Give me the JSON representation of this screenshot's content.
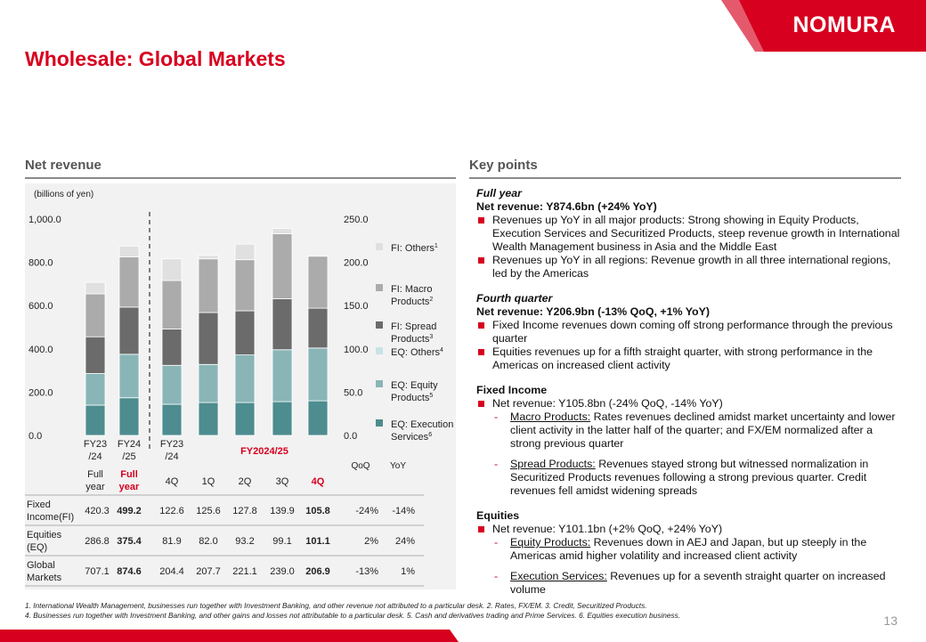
{
  "brand": {
    "name": "NOMURA",
    "color": "#d7001f"
  },
  "page": {
    "title": "Wholesale: Global Markets",
    "number": "13"
  },
  "sections": {
    "left_title": "Net revenue",
    "right_title": "Key points"
  },
  "chart_data": {
    "type": "bar",
    "subtype": "stacked",
    "unit_label": "(billions of yen)",
    "left_axis": {
      "ticks": [
        "1,000.0",
        "800.0",
        "600.0",
        "400.0",
        "200.0",
        "0.0"
      ],
      "range": [
        0,
        1000
      ]
    },
    "right_axis": {
      "ticks": [
        "250.0",
        "200.0",
        "150.0",
        "100.0",
        "50.0",
        "0.0"
      ],
      "range": [
        0,
        250
      ]
    },
    "categories": [
      "FY23/24 Full year",
      "FY24/25 Full year",
      "FY23/24 4Q",
      "FY2024/25 1Q",
      "FY2024/25 2Q",
      "FY2024/25 3Q",
      "FY2024/25 4Q"
    ],
    "axis_of_category": [
      "left",
      "left",
      "right",
      "right",
      "right",
      "right",
      "right"
    ],
    "series": [
      {
        "name": "EQ: Execution Services",
        "sup": "6",
        "color": "#4d8c8f",
        "values": [
          140,
          174,
          36,
          38,
          38,
          39,
          40
        ]
      },
      {
        "name": "EQ: Equity Products",
        "sup": "5",
        "color": "#89b5b7",
        "values": [
          146,
          201,
          45,
          44,
          55,
          60,
          61
        ]
      },
      {
        "name": "EQ: Others",
        "sup": "4",
        "color": "#c8e3e6",
        "values": [
          0,
          0,
          0,
          0,
          0,
          0,
          0
        ]
      },
      {
        "name": "FI: Spread Products",
        "sup": "3",
        "color": "#6b6b6b",
        "values": [
          170,
          218,
          42,
          60,
          51,
          59,
          46
        ]
      },
      {
        "name": "FI: Macro Products",
        "sup": "2",
        "color": "#ababab",
        "values": [
          198,
          232,
          56,
          62,
          59,
          75,
          60
        ]
      },
      {
        "name": "FI: Others",
        "sup": "1",
        "color": "#e0e0e0",
        "values": [
          53,
          50,
          25,
          4,
          18,
          6,
          0
        ]
      }
    ],
    "totals": [
      707.1,
      874.6,
      204.4,
      207.7,
      221.1,
      239.0,
      206.9
    ],
    "legend_position": "right",
    "group_labels": [
      {
        "line1": "FY23",
        "line2": "/24",
        "sub": "Full",
        "sub2": "year",
        "highlight": false
      },
      {
        "line1": "FY24",
        "line2": "/25",
        "sub": "Full",
        "sub2": "year",
        "highlight": true
      },
      {
        "line1": "FY23",
        "line2": "/24",
        "sub": "4Q",
        "sub2": "",
        "highlight": false
      }
    ],
    "period_header": "FY2024/25",
    "quarter_labels": [
      "1Q",
      "2Q",
      "3Q",
      "4Q"
    ],
    "change_headers": [
      "QoQ",
      "YoY"
    ],
    "table": {
      "rows": [
        {
          "label1": "Fixed",
          "label2": "Income(FI)",
          "values": [
            "420.3",
            "499.2",
            "122.6",
            "125.6",
            "127.8",
            "139.9",
            "105.8"
          ],
          "qoq": "-24%",
          "yoy": "-14%"
        },
        {
          "label1": "Equities",
          "label2": "(EQ)",
          "values": [
            "286.8",
            "375.4",
            "81.9",
            "82.0",
            "93.2",
            "99.1",
            "101.1"
          ],
          "qoq": "2%",
          "yoy": "24%"
        },
        {
          "label1": "Global",
          "label2": "Markets",
          "values": [
            "707.1",
            "874.6",
            "204.4",
            "207.7",
            "221.1",
            "239.0",
            "206.9"
          ],
          "qoq": "-13%",
          "yoy": "1%"
        }
      ]
    }
  },
  "key_points": {
    "full_year": {
      "heading": "Full year",
      "sub": "Net revenue: Y874.6bn (+24% YoY)",
      "bullets": [
        "Revenues up YoY in all major products: Strong showing in Equity Products, Execution Services and Securitized Products, steep revenue growth in International Wealth Management business in Asia and the Middle East",
        "Revenues up YoY in all regions: Revenue growth in all three international regions, led by the Americas"
      ]
    },
    "fourth_quarter": {
      "heading": "Fourth quarter",
      "sub": "Net revenue: Y206.9bn (-13% QoQ, +1% YoY)",
      "bullets": [
        "Fixed Income revenues down coming off strong performance through the previous quarter",
        "Equities revenues up for a fifth straight quarter, with strong performance in the Americas on increased client activity"
      ]
    },
    "fixed_income": {
      "heading": "Fixed Income",
      "bullet": "Net revenue: Y105.8bn (-24% QoQ, -14% YoY)",
      "macro_label": "Macro Products:",
      "macro_text": " Rates revenues declined amidst market uncertainty and lower client activity in the latter half of the quarter; and FX/EM normalized after a strong previous quarter",
      "spread_label": "Spread Products:",
      "spread_text": " Revenues stayed strong but witnessed normalization in Securitized Products revenues following a strong previous quarter. Credit revenues fell amidst widening spreads"
    },
    "equities": {
      "heading": "Equities",
      "bullet": "Net revenue: Y101.1bn (+2% QoQ, +24% YoY)",
      "equity_label": "Equity Products:",
      "equity_text": " Revenues down in AEJ and Japan, but up steeply in the Americas amid higher volatility and increased client activity",
      "exec_label": "Execution Services:",
      "exec_text": " Revenues up for a seventh straight quarter on increased volume"
    }
  },
  "footnotes": [
    "1. International Wealth Management, businesses run together with Investment Banking, and other revenue not attributed to a particular desk. 2. Rates, FX/EM. 3. Credit, Securitized Products.",
    "4. Businesses run together with Investment Banking, and other gains and losses not attributable to a particular desk. 5. Cash and derivatives trading and Prime Services.  6. Equities execution business."
  ]
}
